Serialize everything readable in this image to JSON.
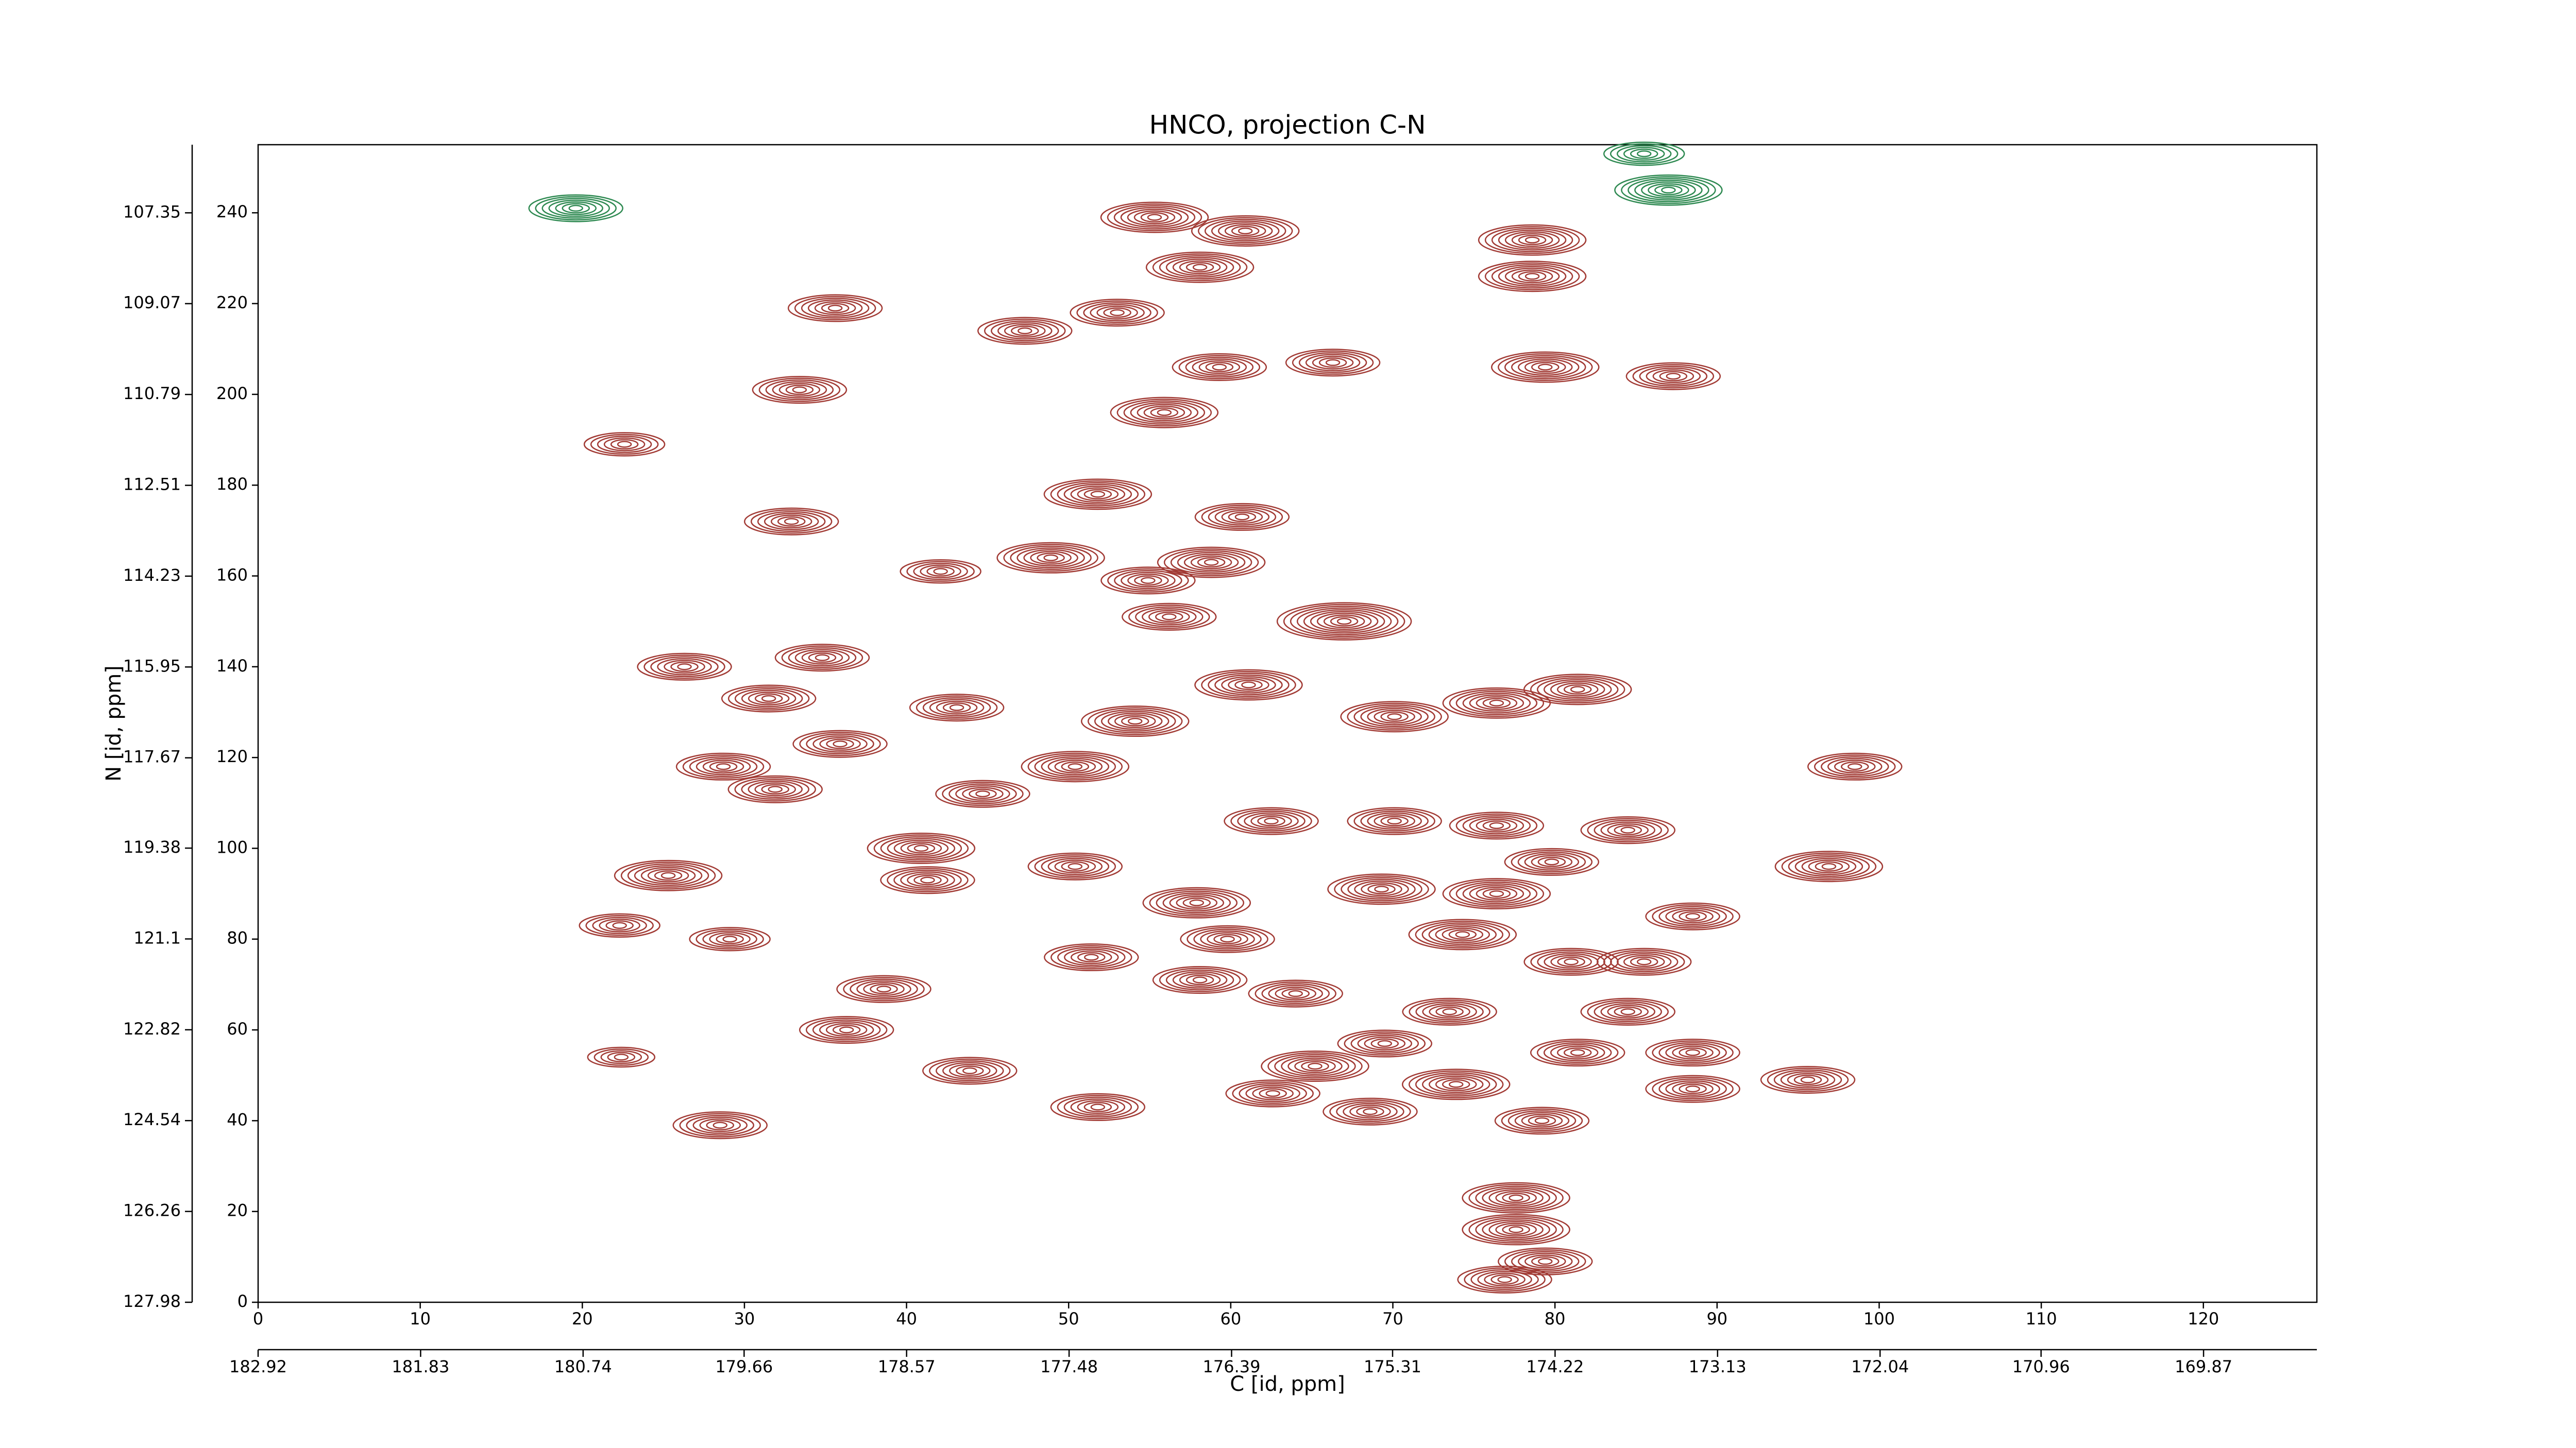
{
  "chart_data": {
    "type": "contour",
    "title": "HNCO, projection C-N",
    "xlabel": "C [id, ppm]",
    "ylabel": "N [id, ppm]",
    "xlim": [
      0,
      127
    ],
    "xticks": [
      0,
      10,
      20,
      30,
      40,
      50,
      60,
      70,
      80,
      90,
      100,
      110,
      120
    ],
    "ylim": [
      0,
      255
    ],
    "yticks": [
      0,
      20,
      40,
      60,
      80,
      100,
      120,
      140,
      160,
      180,
      200,
      220,
      240
    ],
    "x2lim": [
      182.92,
      169.11
    ],
    "x2ticks": [
      182.92,
      181.83,
      180.74,
      179.66,
      178.57,
      177.48,
      176.39,
      175.31,
      174.22,
      173.13,
      172.04,
      170.96,
      169.87
    ],
    "y2lim": [
      127.98,
      106.06
    ],
    "y2ticks": [
      127.98,
      126.26,
      124.54,
      122.82,
      121.1,
      119.38,
      117.67,
      115.95,
      114.23,
      112.51,
      110.79,
      109.07,
      107.35
    ],
    "positive_color": "#a23b35",
    "negative_color": "#2f8a52",
    "peaks": {
      "x": [
        55.3,
        60.9,
        58.1,
        78.6,
        78.6,
        53,
        47.3,
        35.6,
        59.3,
        66.3,
        79.4,
        87.3,
        55.9,
        33.4,
        22.6,
        51.8,
        32.9,
        60.7,
        48.9,
        42.1,
        58.8,
        54.9,
        67,
        56.2,
        26.3,
        34.8,
        43.1,
        31.5,
        61.1,
        54.1,
        70.1,
        76.4,
        81.4,
        35.9,
        28.7,
        50.4,
        98.5,
        31.9,
        44.7,
        62.5,
        70.1,
        76.4,
        84.5,
        40.9,
        25.3,
        50.4,
        96.9,
        41.3,
        79.8,
        69.3,
        57.9,
        76.4,
        88.5,
        22.3,
        29.1,
        59.8,
        74.3,
        51.4,
        58.1,
        81,
        85.5,
        64,
        38.6,
        36.3,
        73.5,
        84.5,
        69.5,
        81.4,
        88.5,
        22.4,
        43.9,
        65.2,
        73.9,
        95.6,
        88.5,
        62.6,
        51.8,
        68.6,
        28.5,
        79.2,
        77.6,
        77.6,
        79.4,
        76.9,
        19.6,
        85.5,
        87
      ],
      "y": [
        239,
        236,
        228,
        234,
        226,
        218,
        214,
        219,
        206,
        207,
        206,
        204,
        196,
        201,
        189,
        178,
        172,
        173,
        164,
        161,
        163,
        159,
        150,
        151,
        140,
        142,
        131,
        133,
        136,
        128,
        129,
        132,
        135,
        123,
        118,
        118,
        118,
        113,
        112,
        106,
        106,
        105,
        104,
        100,
        94,
        96,
        96,
        93,
        97,
        91,
        88,
        90,
        85,
        83,
        80,
        80,
        81,
        76,
        71,
        75,
        75,
        68,
        69,
        60,
        64,
        64,
        57,
        55,
        55,
        54,
        51,
        52,
        48,
        49,
        47,
        46,
        43,
        42,
        39,
        40,
        23,
        16,
        9,
        5,
        241,
        253,
        245
      ],
      "intensity": [
        8,
        8,
        8,
        8,
        8,
        7,
        7,
        7,
        7,
        7,
        8,
        7,
        8,
        7,
        6,
        8,
        7,
        7,
        8,
        6,
        8,
        7,
        10,
        7,
        7,
        7,
        7,
        7,
        8,
        8,
        8,
        8,
        8,
        7,
        7,
        8,
        7,
        7,
        7,
        7,
        7,
        7,
        7,
        8,
        8,
        7,
        8,
        7,
        7,
        8,
        8,
        8,
        7,
        6,
        6,
        7,
        8,
        7,
        7,
        7,
        7,
        7,
        7,
        7,
        7,
        7,
        7,
        7,
        7,
        5,
        7,
        8,
        8,
        7,
        7,
        7,
        7,
        7,
        7,
        7,
        8,
        8,
        7,
        7,
        -7,
        -6,
        -8
      ]
    }
  }
}
